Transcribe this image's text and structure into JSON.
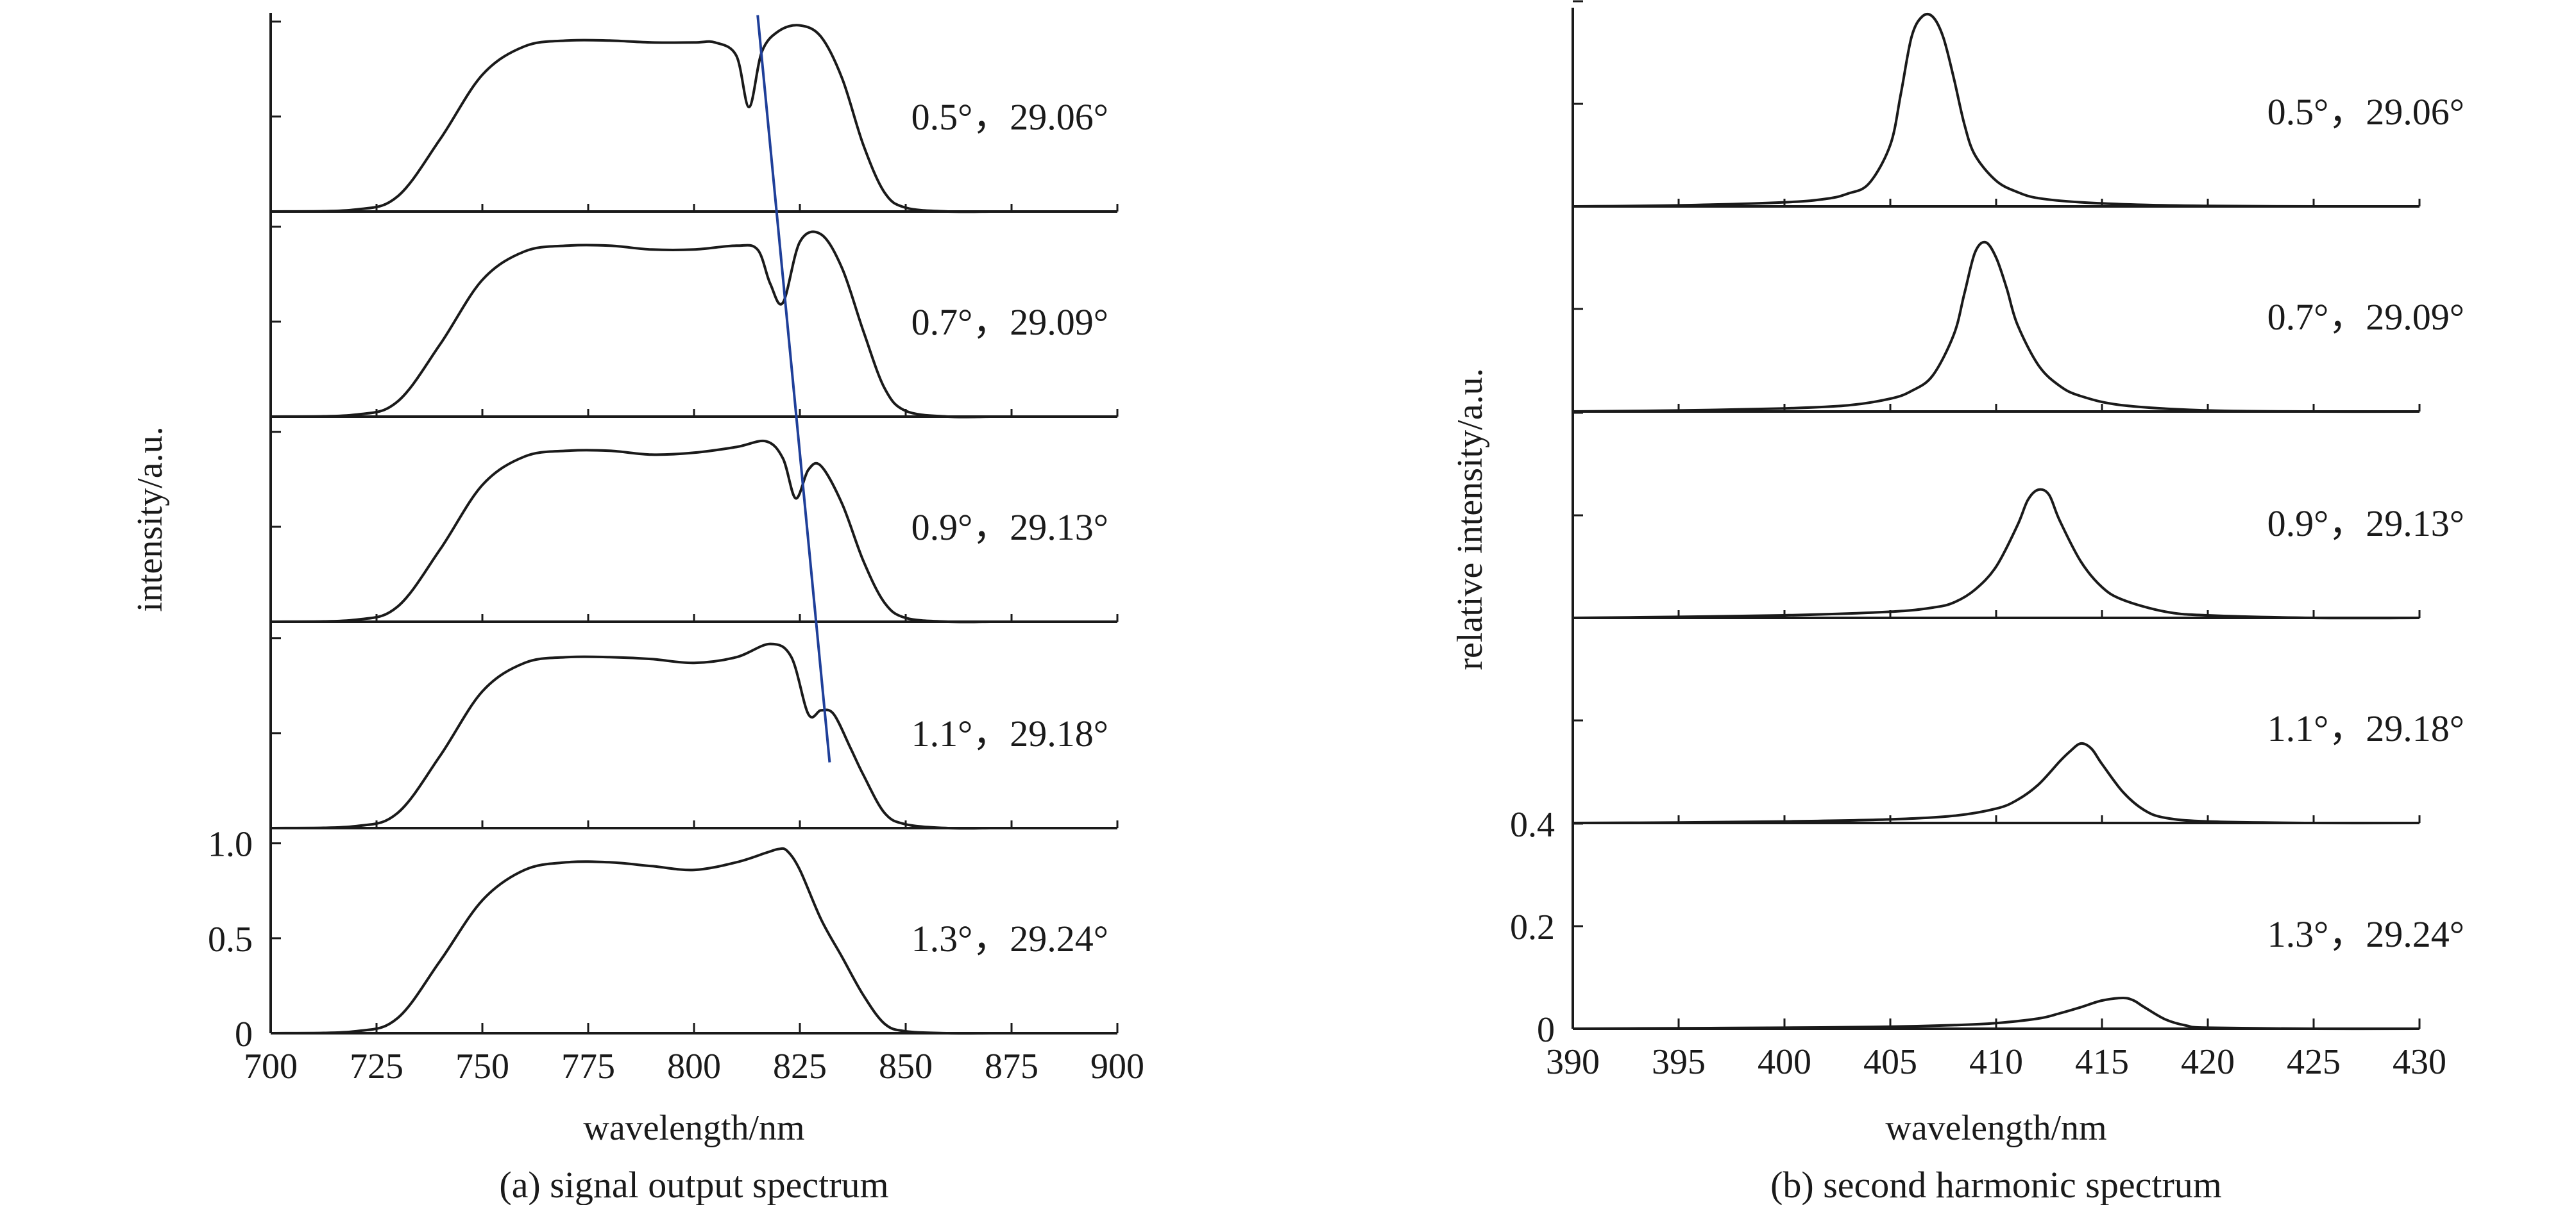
{
  "chart_data": [
    {
      "type": "line",
      "caption": "(a) signal output spectrum",
      "xlabel": "wavelength/nm",
      "ylabel": "intensity/a.u.",
      "xlim": [
        700,
        900
      ],
      "x_ticks": [
        "700",
        "725",
        "750",
        "775",
        "800",
        "825",
        "850",
        "875",
        "900"
      ],
      "ylim": [
        0,
        1.08
      ],
      "y_ticks": [
        "0",
        "0.5",
        "1.0"
      ],
      "layout": "stacked-panels",
      "panels": [
        {
          "label": "0.5°，29.06°",
          "x": [
            700,
            720,
            730,
            740,
            750,
            760,
            770,
            780,
            790,
            800,
            805,
            810,
            813,
            816,
            820,
            825,
            830,
            835,
            840,
            845,
            850,
            860,
            870
          ],
          "y": [
            0,
            0.01,
            0.08,
            0.38,
            0.72,
            0.87,
            0.9,
            0.9,
            0.89,
            0.89,
            0.89,
            0.82,
            0.55,
            0.84,
            0.95,
            0.98,
            0.92,
            0.7,
            0.35,
            0.1,
            0.02,
            0,
            0
          ]
        },
        {
          "label": "0.7°，29.09°",
          "x": [
            700,
            720,
            730,
            740,
            750,
            760,
            770,
            780,
            790,
            800,
            810,
            815,
            818,
            821,
            825,
            830,
            835,
            840,
            845,
            850,
            860,
            870
          ],
          "y": [
            0,
            0.01,
            0.08,
            0.38,
            0.72,
            0.87,
            0.9,
            0.9,
            0.88,
            0.88,
            0.9,
            0.88,
            0.7,
            0.6,
            0.92,
            0.96,
            0.78,
            0.45,
            0.15,
            0.03,
            0,
            0
          ]
        },
        {
          "label": "0.9°，29.13°",
          "x": [
            700,
            720,
            730,
            740,
            750,
            760,
            770,
            780,
            790,
            800,
            810,
            817,
            821,
            824,
            827,
            830,
            835,
            840,
            845,
            850,
            860,
            870
          ],
          "y": [
            0,
            0.01,
            0.08,
            0.38,
            0.72,
            0.87,
            0.9,
            0.9,
            0.88,
            0.89,
            0.92,
            0.95,
            0.86,
            0.65,
            0.8,
            0.82,
            0.62,
            0.32,
            0.1,
            0.02,
            0,
            0
          ]
        },
        {
          "label": "1.1°，29.18°",
          "x": [
            700,
            720,
            730,
            740,
            750,
            760,
            770,
            780,
            790,
            800,
            810,
            818,
            823,
            827,
            830,
            833,
            837,
            840,
            845,
            850,
            860,
            870
          ],
          "y": [
            0,
            0.01,
            0.08,
            0.38,
            0.72,
            0.87,
            0.9,
            0.9,
            0.89,
            0.87,
            0.9,
            0.97,
            0.9,
            0.6,
            0.62,
            0.6,
            0.42,
            0.28,
            0.08,
            0.02,
            0,
            0
          ]
        },
        {
          "label": "1.3°，29.24°",
          "x": [
            700,
            720,
            730,
            740,
            750,
            760,
            770,
            780,
            790,
            800,
            810,
            817,
            820,
            822,
            825,
            830,
            835,
            840,
            845,
            850,
            860,
            870
          ],
          "y": [
            0,
            0.01,
            0.08,
            0.38,
            0.7,
            0.86,
            0.9,
            0.9,
            0.88,
            0.86,
            0.9,
            0.95,
            0.97,
            0.96,
            0.86,
            0.6,
            0.4,
            0.2,
            0.05,
            0.01,
            0,
            0
          ]
        }
      ],
      "trend_line": {
        "x": [
          812,
          829
        ],
        "panel_start": 0,
        "y_start": 1.0,
        "panel_end": 3,
        "y_end": 0.38
      }
    },
    {
      "type": "line",
      "caption": "(b) second harmonic spectrum",
      "xlabel": "wavelength/nm",
      "ylabel": "relative intensity/a.u.",
      "xlim": [
        390,
        430
      ],
      "x_ticks": [
        "390",
        "395",
        "400",
        "405",
        "410",
        "415",
        "420",
        "425",
        "430"
      ],
      "ylim": [
        0,
        0.4
      ],
      "y_ticks": [
        "0",
        "0.2",
        "0.4"
      ],
      "layout": "stacked-panels",
      "panels": [
        {
          "label": "0.5°，29.06°",
          "x": [
            390,
            395,
            400,
            402,
            403,
            404,
            405,
            405.5,
            406,
            406.5,
            407,
            407.5,
            408,
            408.5,
            409,
            410,
            411,
            412,
            414,
            417,
            420,
            425,
            430
          ],
          "y": [
            0,
            0.002,
            0.008,
            0.015,
            0.025,
            0.045,
            0.12,
            0.22,
            0.33,
            0.37,
            0.37,
            0.33,
            0.25,
            0.16,
            0.1,
            0.05,
            0.028,
            0.016,
            0.008,
            0.003,
            0.001,
            0,
            0
          ]
        },
        {
          "label": "0.7°，29.09°",
          "x": [
            390,
            395,
            400,
            403,
            405,
            406,
            407,
            408,
            408.5,
            409,
            409.5,
            410,
            410.5,
            411,
            412,
            413,
            414,
            416,
            420,
            425,
            430
          ],
          "y": [
            0,
            0.002,
            0.006,
            0.012,
            0.025,
            0.04,
            0.07,
            0.15,
            0.23,
            0.31,
            0.33,
            0.3,
            0.24,
            0.17,
            0.09,
            0.05,
            0.03,
            0.012,
            0.002,
            0,
            0
          ]
        },
        {
          "label": "0.9°，29.13°",
          "x": [
            390,
            395,
            400,
            405,
            407,
            408,
            409,
            410,
            411,
            411.5,
            412,
            412.5,
            413,
            414,
            415,
            416,
            418,
            420,
            425,
            430
          ],
          "y": [
            0,
            0.002,
            0.005,
            0.012,
            0.02,
            0.03,
            0.055,
            0.1,
            0.18,
            0.23,
            0.25,
            0.24,
            0.19,
            0.11,
            0.06,
            0.035,
            0.012,
            0.005,
            0,
            0
          ]
        },
        {
          "label": "1.1°，29.18°",
          "x": [
            390,
            395,
            400,
            405,
            408,
            410,
            411,
            412,
            413,
            413.5,
            414,
            414.5,
            415,
            416,
            417,
            418,
            420,
            425,
            430
          ],
          "y": [
            0,
            0.001,
            0.003,
            0.007,
            0.014,
            0.028,
            0.045,
            0.075,
            0.12,
            0.14,
            0.155,
            0.145,
            0.115,
            0.06,
            0.025,
            0.01,
            0.003,
            0,
            0
          ]
        },
        {
          "label": "1.3°，29.24°",
          "x": [
            390,
            395,
            400,
            405,
            408,
            410,
            412,
            413,
            414,
            415,
            416,
            416.5,
            417,
            418,
            419,
            420,
            425,
            430
          ],
          "y": [
            0,
            0.001,
            0.002,
            0.004,
            0.007,
            0.011,
            0.02,
            0.03,
            0.042,
            0.055,
            0.06,
            0.055,
            0.042,
            0.018,
            0.006,
            0.002,
            0,
            0
          ]
        }
      ]
    }
  ]
}
